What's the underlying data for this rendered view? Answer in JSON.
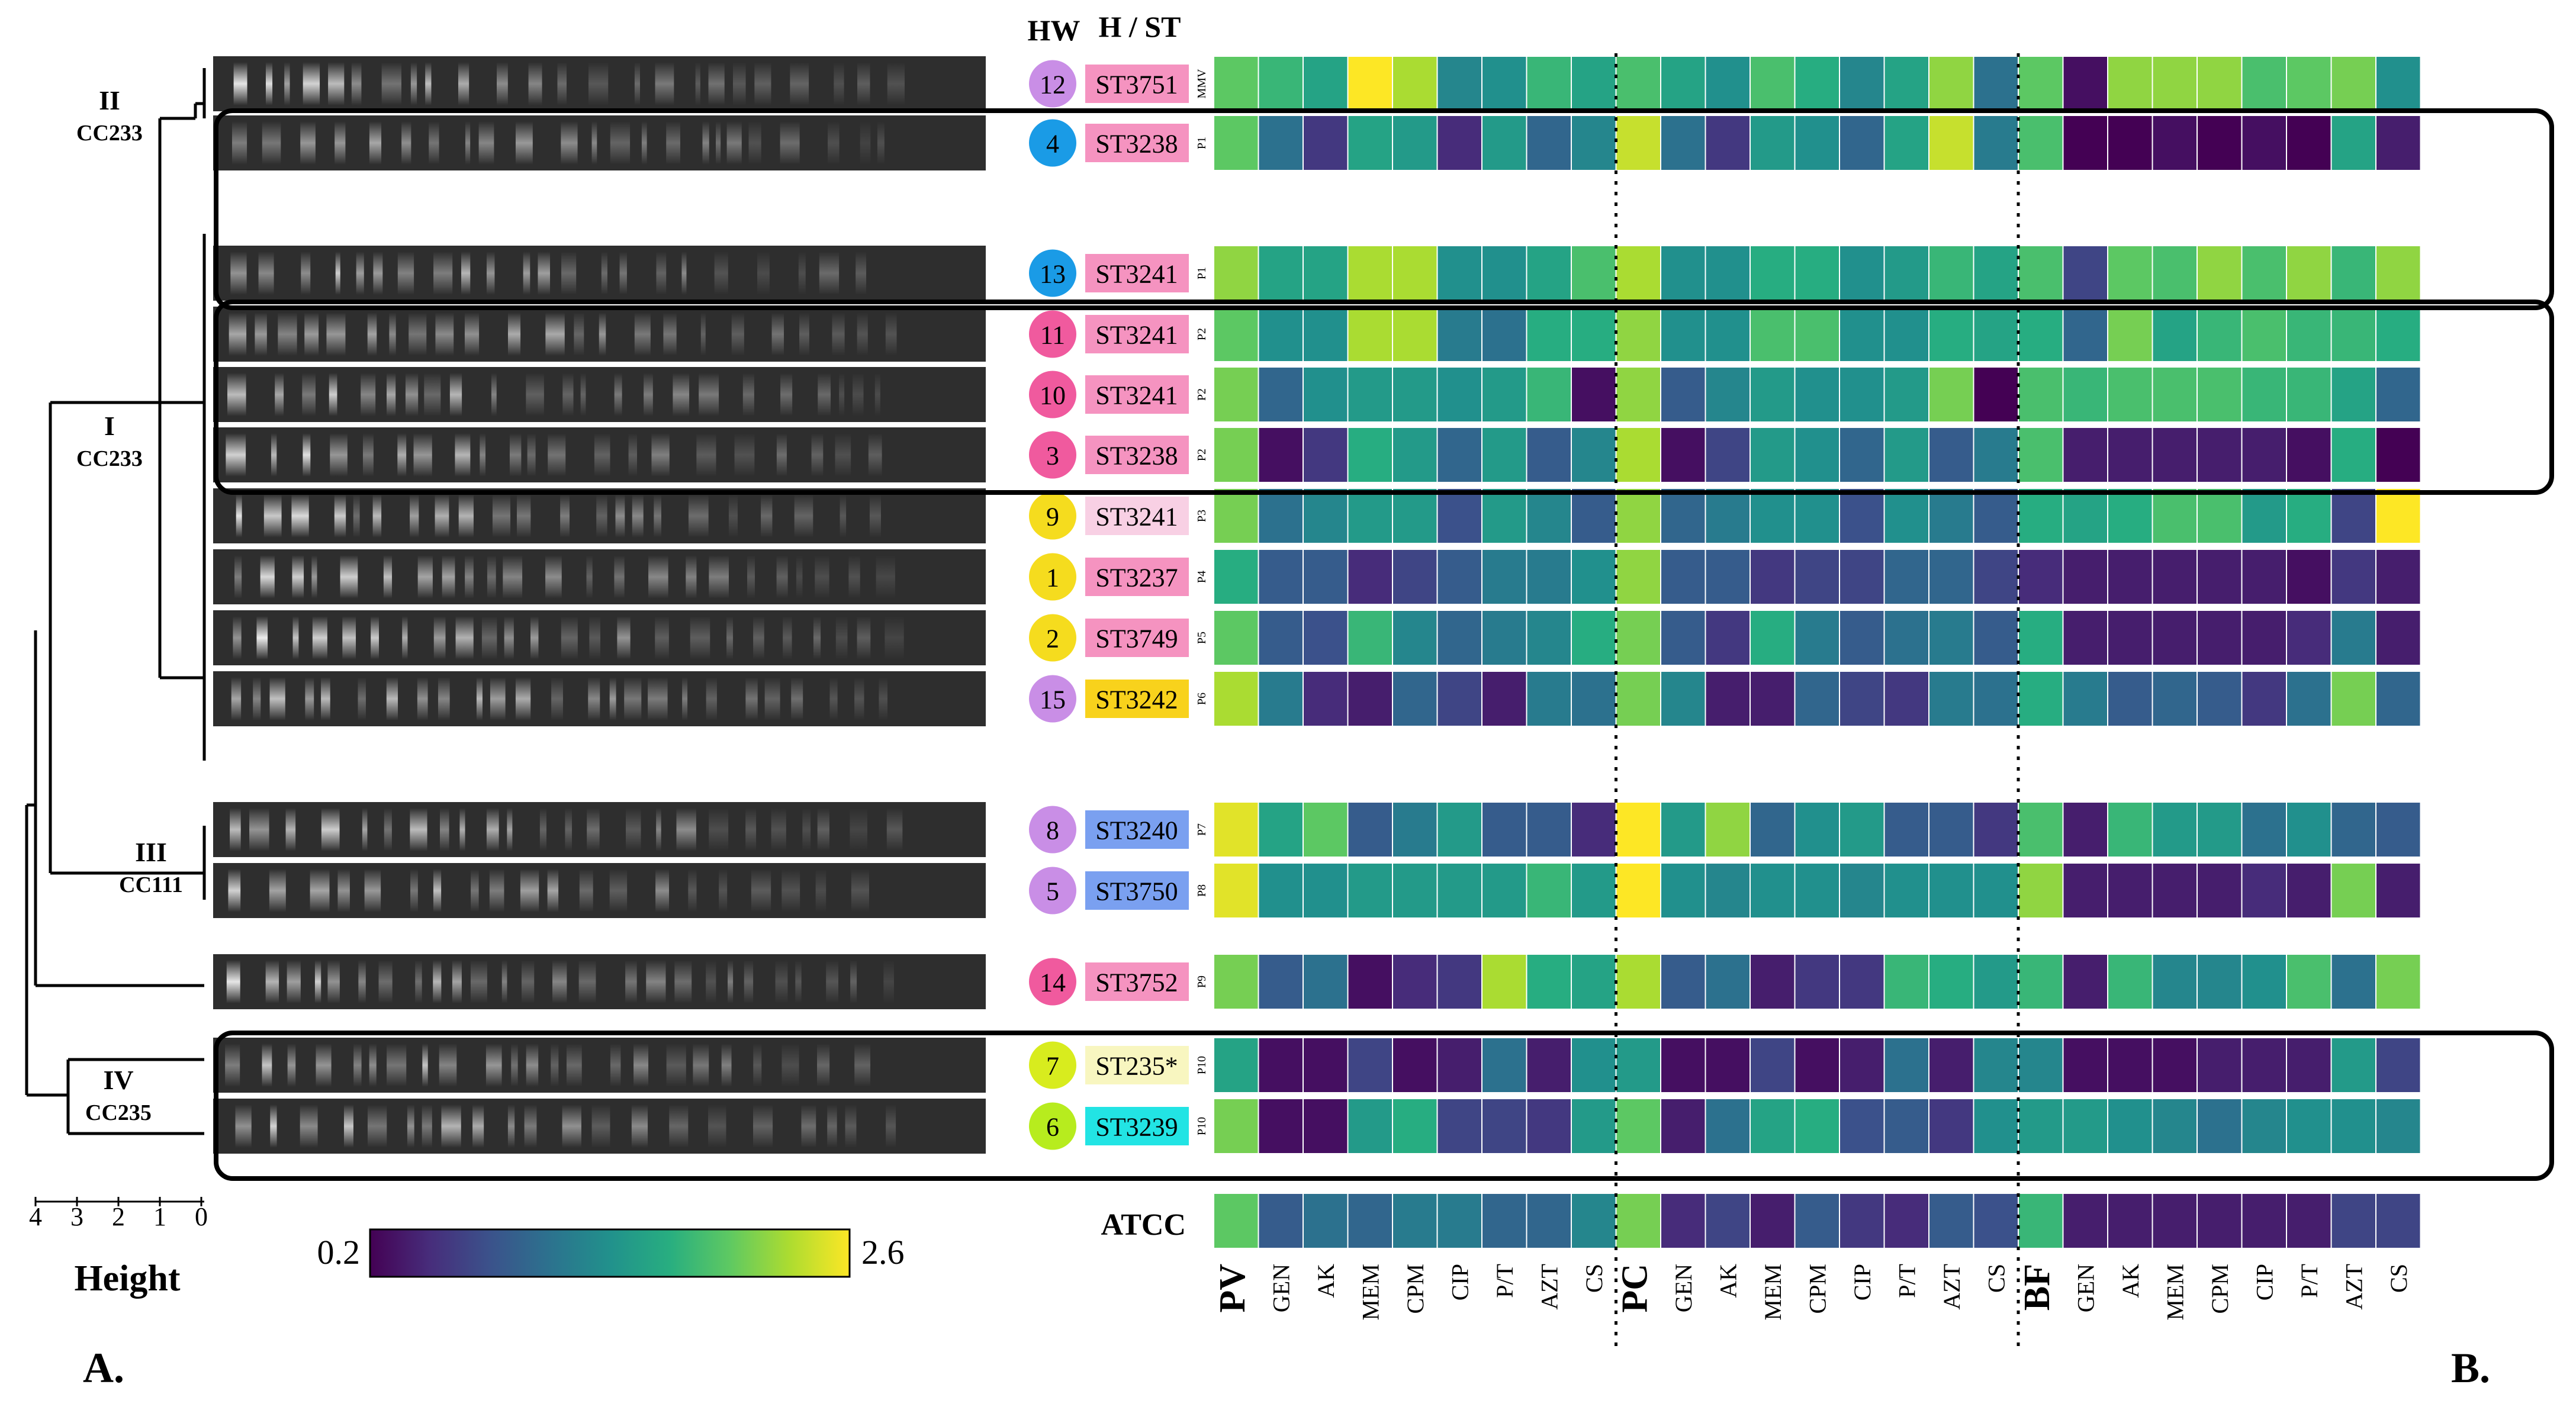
{
  "chart_data": {
    "type": "heatmap",
    "title": "",
    "colorbar": {
      "min": 0.2,
      "max": 2.6,
      "min_label": "0.2",
      "max_label": "2.6",
      "colormap": "viridis"
    },
    "column_headers": {
      "hw": "HW",
      "hst": "H / ST"
    },
    "groups": [
      "PV",
      "PC",
      "BF"
    ],
    "columns": [
      "GEN",
      "AK",
      "MEM",
      "CPM",
      "CIP",
      "P/T",
      "AZT",
      "CS"
    ],
    "dendrogram": {
      "axis_label": "Height",
      "ticks": [
        "4",
        "3",
        "2",
        "1",
        "0"
      ],
      "clusters": [
        {
          "roman": "II",
          "cc": "CC233"
        },
        {
          "roman": "I",
          "cc": "CC233"
        },
        {
          "roman": "III",
          "cc": "CC111"
        },
        {
          "roman": "IV",
          "cc": "CC235"
        }
      ]
    },
    "rows": [
      {
        "hw": "12",
        "st": "ST3751",
        "profile": "MMV",
        "pv": 2.0,
        "pc": 1.9,
        "bf": 2.0,
        "pv_vals": [
          1.8,
          1.6,
          2.6,
          2.3,
          1.3,
          1.4,
          1.8,
          1.6
        ],
        "pc_vals": [
          1.6,
          1.4,
          1.9,
          1.7,
          1.3,
          1.6,
          2.2,
          1.1
        ],
        "bf_vals": [
          0.3,
          2.2,
          2.2,
          2.2,
          1.9,
          2.0,
          2.1,
          1.4
        ]
      },
      {
        "hw": "4",
        "st": "ST3238",
        "profile": "P1",
        "pv": 2.0,
        "pc": 2.4,
        "bf": 1.9,
        "pv_vals": [
          1.1,
          0.6,
          1.6,
          1.5,
          0.5,
          1.5,
          1.0,
          1.3
        ],
        "pc_vals": [
          1.1,
          0.6,
          1.5,
          1.4,
          1.0,
          1.6,
          2.4,
          1.2
        ],
        "bf_vals": [
          0.2,
          0.2,
          0.3,
          0.2,
          0.3,
          0.2,
          1.6,
          0.4
        ]
      },
      {
        "hw": "13",
        "st": "ST3241",
        "profile": "P1",
        "pv": 2.2,
        "pc": 2.3,
        "bf": 1.9,
        "pv_vals": [
          1.6,
          1.6,
          2.3,
          2.3,
          1.4,
          1.4,
          1.6,
          1.9
        ],
        "pc_vals": [
          1.4,
          1.4,
          1.7,
          1.7,
          1.4,
          1.5,
          1.8,
          1.6
        ],
        "bf_vals": [
          0.7,
          2.0,
          1.9,
          2.2,
          1.9,
          2.2,
          1.8,
          2.2
        ]
      },
      {
        "hw": "11",
        "st": "ST3241",
        "profile": "P2",
        "pv": 2.0,
        "pc": 2.2,
        "bf": 1.7,
        "pv_vals": [
          1.4,
          1.4,
          2.3,
          2.3,
          1.2,
          1.1,
          1.7,
          1.7
        ],
        "pc_vals": [
          1.4,
          1.4,
          1.9,
          1.9,
          1.4,
          1.4,
          1.7,
          1.6
        ],
        "bf_vals": [
          1.0,
          2.1,
          1.6,
          1.8,
          1.9,
          1.8,
          1.8,
          1.7
        ]
      },
      {
        "hw": "10",
        "st": "ST3241",
        "profile": "P2",
        "pv": 2.1,
        "pc": 2.2,
        "bf": 1.9,
        "pv_vals": [
          1.0,
          1.4,
          1.5,
          1.5,
          1.4,
          1.5,
          1.8,
          0.3
        ],
        "pc_vals": [
          0.9,
          1.3,
          1.5,
          1.4,
          1.4,
          1.5,
          2.1,
          0.2
        ],
        "bf_vals": [
          1.8,
          1.9,
          1.9,
          1.9,
          1.8,
          1.8,
          1.6,
          1.0
        ]
      },
      {
        "hw": "3",
        "st": "ST3238",
        "profile": "P2",
        "pv": 2.1,
        "pc": 2.3,
        "bf": 1.9,
        "pv_vals": [
          0.3,
          0.6,
          1.7,
          1.5,
          1.0,
          1.5,
          0.9,
          1.3
        ],
        "pc_vals": [
          0.3,
          0.7,
          1.5,
          1.4,
          1.0,
          1.5,
          0.9,
          1.2
        ],
        "bf_vals": [
          0.4,
          0.4,
          0.4,
          0.4,
          0.4,
          0.3,
          1.7,
          0.2
        ]
      },
      {
        "hw": "9",
        "st": "ST3241",
        "profile": "P3",
        "pv": 2.1,
        "pc": 2.2,
        "bf": 1.7,
        "pv_vals": [
          1.1,
          1.3,
          1.5,
          1.5,
          0.8,
          1.5,
          1.3,
          0.9
        ],
        "pc_vals": [
          1.0,
          1.2,
          1.4,
          1.4,
          0.8,
          1.4,
          1.2,
          0.9
        ],
        "bf_vals": [
          1.6,
          1.7,
          1.9,
          1.9,
          1.5,
          1.7,
          0.7,
          2.6
        ]
      },
      {
        "hw": "1",
        "st": "ST3237",
        "profile": "P4",
        "pv": 1.7,
        "pc": 2.2,
        "bf": 0.5,
        "pv_vals": [
          0.9,
          0.9,
          0.5,
          0.7,
          0.9,
          1.2,
          1.2,
          1.4
        ],
        "pc_vals": [
          0.9,
          0.9,
          0.6,
          0.7,
          0.7,
          1.0,
          1.0,
          0.7
        ],
        "bf_vals": [
          0.4,
          0.4,
          0.4,
          0.4,
          0.4,
          0.3,
          0.6,
          0.4
        ]
      },
      {
        "hw": "2",
        "st": "ST3749",
        "profile": "P5",
        "pv": 2.0,
        "pc": 2.1,
        "bf": 1.7,
        "pv_vals": [
          0.9,
          0.8,
          1.8,
          1.3,
          1.0,
          1.2,
          1.3,
          1.7
        ],
        "pc_vals": [
          0.9,
          0.6,
          1.7,
          1.2,
          0.9,
          1.1,
          1.2,
          0.9
        ],
        "bf_vals": [
          0.4,
          0.4,
          0.4,
          0.4,
          0.4,
          0.5,
          1.2,
          0.4
        ]
      },
      {
        "hw": "15",
        "st": "ST3242",
        "profile": "P6",
        "pv": 2.3,
        "pc": 2.1,
        "bf": 1.7,
        "pv_vals": [
          1.2,
          0.5,
          0.4,
          1.0,
          0.7,
          0.4,
          1.2,
          1.1
        ],
        "pc_vals": [
          1.3,
          0.4,
          0.4,
          1.0,
          0.7,
          0.6,
          1.2,
          1.1
        ],
        "bf_vals": [
          1.2,
          0.9,
          1.0,
          0.9,
          0.6,
          1.1,
          2.1,
          1.0
        ]
      },
      {
        "hw": "8",
        "st": "ST3240",
        "profile": "P7",
        "pv": 2.5,
        "pc": 2.6,
        "bf": 1.9,
        "pv_vals": [
          1.6,
          2.0,
          0.9,
          1.2,
          1.5,
          0.9,
          0.9,
          0.5
        ],
        "pc_vals": [
          1.5,
          2.2,
          1.0,
          1.4,
          1.5,
          0.9,
          0.9,
          0.6
        ],
        "bf_vals": [
          0.4,
          1.8,
          1.5,
          1.5,
          1.1,
          1.4,
          1.0,
          0.9
        ]
      },
      {
        "hw": "5",
        "st": "ST3750",
        "profile": "P8",
        "pv": 2.5,
        "pc": 2.6,
        "bf": 2.2,
        "pv_vals": [
          1.4,
          1.4,
          1.5,
          1.5,
          1.5,
          1.5,
          1.8,
          1.5
        ],
        "pc_vals": [
          1.4,
          1.3,
          1.4,
          1.4,
          1.3,
          1.4,
          1.4,
          1.4
        ],
        "bf_vals": [
          0.4,
          0.4,
          0.4,
          0.4,
          0.5,
          0.4,
          2.1,
          0.4
        ]
      },
      {
        "hw": "14",
        "st": "ST3752",
        "profile": "P9",
        "pv": 2.1,
        "pc": 2.3,
        "bf": 1.8,
        "pv_vals": [
          0.9,
          1.1,
          0.3,
          0.5,
          0.6,
          2.3,
          1.7,
          1.6
        ],
        "pc_vals": [
          0.9,
          1.1,
          0.4,
          0.6,
          0.6,
          1.8,
          1.7,
          1.5
        ],
        "bf_vals": [
          0.4,
          1.8,
          1.3,
          1.3,
          1.4,
          1.9,
          1.1,
          2.1
        ]
      },
      {
        "hw": "7",
        "st": "ST235*",
        "profile": "P10",
        "pv": 1.6,
        "pc": 1.5,
        "bf": 1.3,
        "pv_vals": [
          0.3,
          0.3,
          0.7,
          0.3,
          0.4,
          1.1,
          0.4,
          1.4
        ],
        "pc_vals": [
          0.3,
          0.3,
          0.7,
          0.3,
          0.4,
          1.1,
          0.4,
          1.3
        ],
        "bf_vals": [
          0.3,
          0.3,
          0.3,
          0.4,
          0.4,
          0.4,
          1.5,
          0.7
        ]
      },
      {
        "hw": "6",
        "st": "ST3239",
        "profile": "P10",
        "pv": 2.1,
        "pc": 2.0,
        "bf": 1.5,
        "pv_vals": [
          0.3,
          0.3,
          1.5,
          1.7,
          0.7,
          0.7,
          0.6,
          1.5
        ],
        "pc_vals": [
          0.4,
          1.1,
          1.6,
          1.7,
          0.8,
          0.9,
          0.6,
          1.4
        ],
        "bf_vals": [
          1.5,
          1.4,
          1.3,
          1.1,
          1.3,
          1.4,
          1.4,
          1.3
        ]
      }
    ],
    "atcc": {
      "label": "ATCC",
      "pv": 2.0,
      "pc": 2.1,
      "bf": 1.8,
      "pv_vals": [
        0.9,
        1.1,
        1.0,
        1.2,
        1.2,
        1.0,
        1.0,
        1.3
      ],
      "pc_vals": [
        0.5,
        0.7,
        0.4,
        0.9,
        0.6,
        0.5,
        0.9,
        0.8
      ],
      "bf_vals": [
        0.4,
        0.4,
        0.4,
        0.4,
        0.4,
        0.4,
        0.7,
        0.7
      ]
    },
    "panel_labels": {
      "a": "A.",
      "b": "B."
    }
  }
}
